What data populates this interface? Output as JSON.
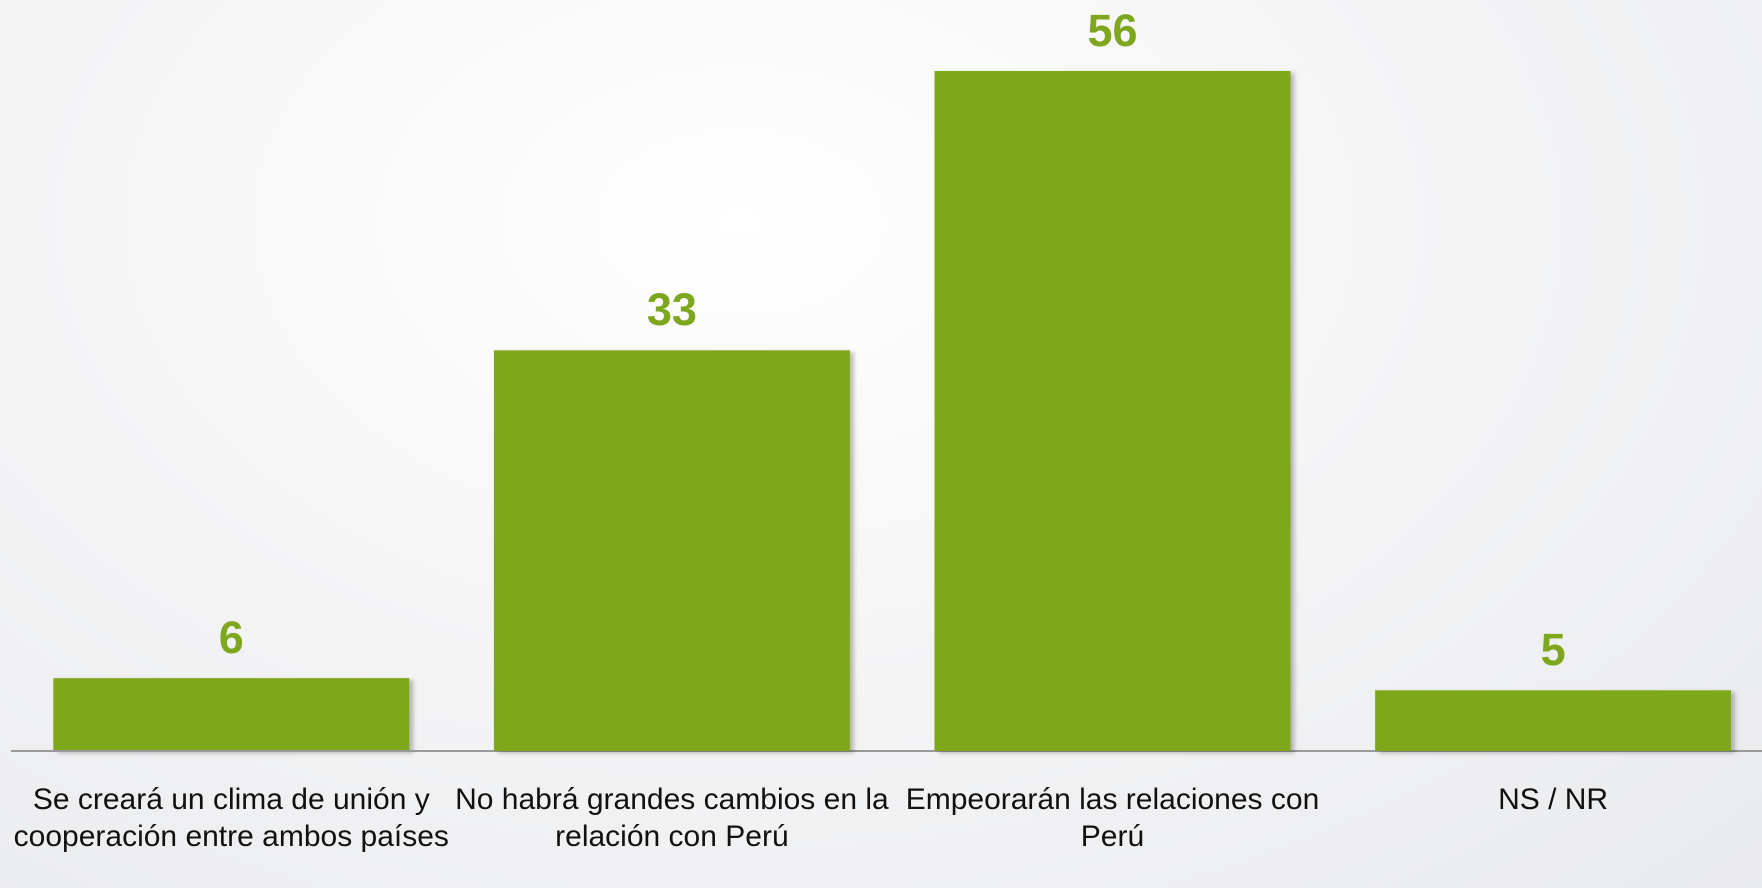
{
  "chart_data": {
    "type": "bar",
    "categories": [
      "Se creará un clima de unión y cooperación entre ambos países",
      "No habrá grandes cambios en la relación con Perú",
      "Empeorarán las relaciones con Perú",
      "NS / NR"
    ],
    "values": [
      6,
      33,
      56,
      5
    ],
    "color": "#7ea71f"
  }
}
